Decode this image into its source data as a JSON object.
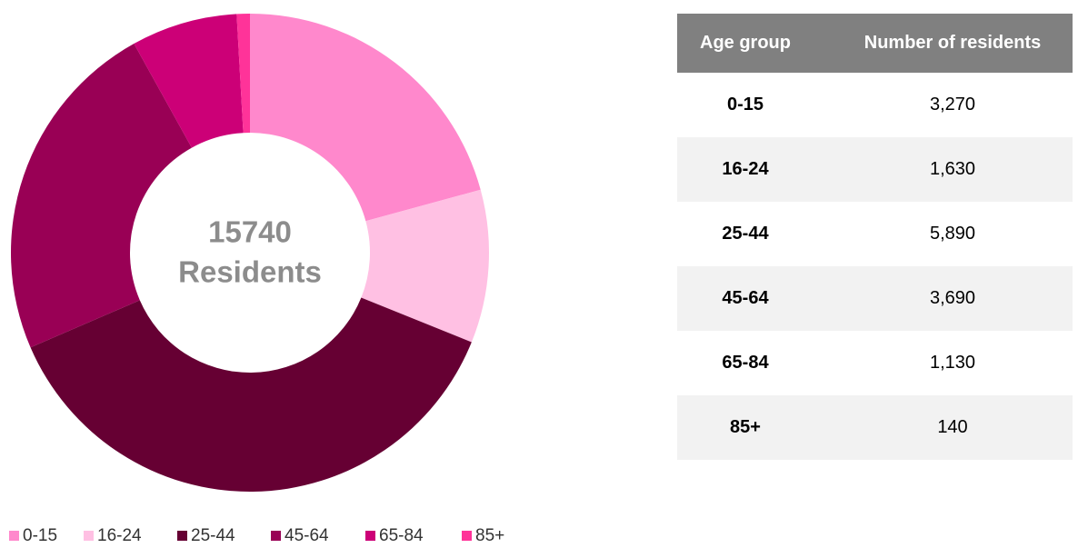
{
  "chart_data": {
    "type": "pie",
    "donut": true,
    "center_label": [
      "15740",
      "Residents"
    ],
    "categories": [
      "0-15",
      "16-24",
      "25-44",
      "45-64",
      "65-84",
      "85+"
    ],
    "values": [
      3270,
      1630,
      5890,
      3690,
      1130,
      140
    ],
    "colors": [
      "#ff88cc",
      "#ffc0e3",
      "#660033",
      "#990055",
      "#cc0077",
      "#ff3399"
    ],
    "legend": "bottom"
  },
  "table": {
    "header": [
      "Age group",
      "Number of residents"
    ],
    "rows": [
      [
        "0-15",
        "3,270"
      ],
      [
        "16-24",
        "1,630"
      ],
      [
        "25-44",
        "5,890"
      ],
      [
        "45-64",
        "3,690"
      ],
      [
        "65-84",
        "1,130"
      ],
      [
        "85+",
        "140"
      ]
    ]
  }
}
